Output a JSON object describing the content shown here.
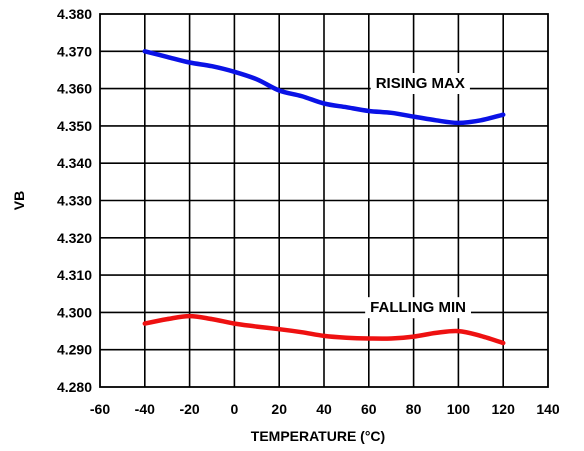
{
  "chart_data": {
    "type": "line",
    "xlabel": "TEMPERATURE (°C)",
    "ylabel": "VB",
    "xlim": [
      -60,
      140
    ],
    "ylim": [
      4.28,
      4.38
    ],
    "x_ticks": [
      "-60",
      "-40",
      "-20",
      "0",
      "20",
      "40",
      "60",
      "80",
      "100",
      "120",
      "140"
    ],
    "y_ticks": [
      "4.380",
      "4.370",
      "4.360",
      "4.350",
      "4.340",
      "4.330",
      "4.320",
      "4.310",
      "4.300",
      "4.290",
      "4.280"
    ],
    "grid": true,
    "series": [
      {
        "name": "RISING MAX",
        "color": "#0a12e6",
        "points": [
          [
            -40,
            4.37
          ],
          [
            -30,
            4.3685
          ],
          [
            -20,
            4.367
          ],
          [
            -10,
            4.366
          ],
          [
            0,
            4.3645
          ],
          [
            10,
            4.3625
          ],
          [
            20,
            4.3595
          ],
          [
            30,
            4.358
          ],
          [
            40,
            4.356
          ],
          [
            50,
            4.355
          ],
          [
            60,
            4.354
          ],
          [
            70,
            4.3535
          ],
          [
            80,
            4.3525
          ],
          [
            90,
            4.3515
          ],
          [
            100,
            4.3508
          ],
          [
            110,
            4.3515
          ],
          [
            120,
            4.353
          ]
        ]
      },
      {
        "name": "FALLING MIN",
        "color": "#ee1111",
        "points": [
          [
            -40,
            4.297
          ],
          [
            -30,
            4.2982
          ],
          [
            -20,
            4.299
          ],
          [
            -10,
            4.2982
          ],
          [
            0,
            4.297
          ],
          [
            10,
            4.2962
          ],
          [
            20,
            4.2955
          ],
          [
            30,
            4.2947
          ],
          [
            40,
            4.2937
          ],
          [
            50,
            4.2932
          ],
          [
            60,
            4.293
          ],
          [
            70,
            4.293
          ],
          [
            80,
            4.2935
          ],
          [
            90,
            4.2945
          ],
          [
            100,
            4.295
          ],
          [
            110,
            4.2937
          ],
          [
            120,
            4.2918
          ]
        ]
      }
    ]
  }
}
